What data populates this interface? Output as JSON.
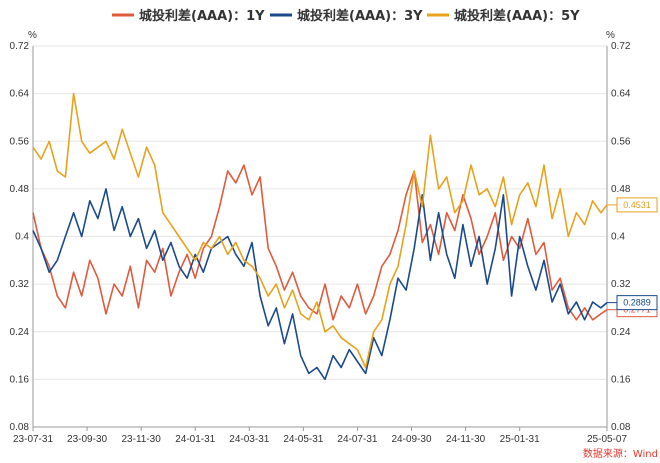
{
  "chart_data": {
    "type": "line",
    "title": "",
    "ylabel_left": "%",
    "ylabel_right": "%",
    "ylim": [
      0.08,
      0.72
    ],
    "yticks": [
      "0.08",
      "0.16",
      "0.24",
      "0.32",
      "0.4",
      "0.48",
      "0.56",
      "0.64",
      "0.72"
    ],
    "xticks": [
      "23-07-31",
      "23-09-30",
      "23-11-30",
      "24-01-31",
      "24-03-31",
      "24-05-31",
      "24-07-31",
      "24-09-30",
      "24-11-30",
      "25-01-31",
      "25-05-07"
    ],
    "xtick_months": [
      0,
      2,
      4,
      6,
      8,
      10,
      12,
      14,
      16,
      18,
      21.23
    ],
    "x_month_range": [
      0,
      21.23
    ],
    "source": "数据来源：Wind",
    "legend_position": "top-center",
    "series": [
      {
        "name": "城投利差(AAA)：1Y",
        "color": "#e05a3c",
        "end_label": "0.2771",
        "months": [
          0,
          0.3,
          0.6,
          0.9,
          1.2,
          1.5,
          1.8,
          2.1,
          2.4,
          2.7,
          3.0,
          3.3,
          3.6,
          3.9,
          4.2,
          4.5,
          4.8,
          5.1,
          5.4,
          5.7,
          6.0,
          6.3,
          6.6,
          6.9,
          7.2,
          7.5,
          7.8,
          8.1,
          8.4,
          8.7,
          9.0,
          9.3,
          9.6,
          9.9,
          10.2,
          10.5,
          10.8,
          11.1,
          11.4,
          11.7,
          12.0,
          12.3,
          12.6,
          12.9,
          13.2,
          13.5,
          13.8,
          14.1,
          14.4,
          14.7,
          15.0,
          15.3,
          15.6,
          15.9,
          16.2,
          16.5,
          16.8,
          17.1,
          17.4,
          17.7,
          18.0,
          18.3,
          18.6,
          18.9,
          19.2,
          19.5,
          19.8,
          20.1,
          20.4,
          20.7,
          21.0,
          21.23
        ],
        "values": [
          0.44,
          0.38,
          0.35,
          0.3,
          0.28,
          0.34,
          0.3,
          0.36,
          0.33,
          0.27,
          0.32,
          0.3,
          0.35,
          0.28,
          0.36,
          0.34,
          0.38,
          0.3,
          0.34,
          0.37,
          0.33,
          0.38,
          0.4,
          0.45,
          0.51,
          0.49,
          0.52,
          0.47,
          0.5,
          0.38,
          0.35,
          0.31,
          0.34,
          0.3,
          0.28,
          0.27,
          0.32,
          0.26,
          0.3,
          0.28,
          0.32,
          0.27,
          0.3,
          0.35,
          0.37,
          0.41,
          0.47,
          0.51,
          0.39,
          0.42,
          0.37,
          0.44,
          0.41,
          0.47,
          0.43,
          0.37,
          0.4,
          0.44,
          0.36,
          0.4,
          0.38,
          0.43,
          0.37,
          0.39,
          0.31,
          0.33,
          0.28,
          0.26,
          0.28,
          0.26,
          0.27,
          0.2771
        ]
      },
      {
        "name": "城投利差(AAA)：3Y",
        "color": "#1a4a8c",
        "end_label": "0.2889",
        "months": [
          0,
          0.3,
          0.6,
          0.9,
          1.2,
          1.5,
          1.8,
          2.1,
          2.4,
          2.7,
          3.0,
          3.3,
          3.6,
          3.9,
          4.2,
          4.5,
          4.8,
          5.1,
          5.4,
          5.7,
          6.0,
          6.3,
          6.6,
          6.9,
          7.2,
          7.5,
          7.8,
          8.1,
          8.4,
          8.7,
          9.0,
          9.3,
          9.6,
          9.9,
          10.2,
          10.5,
          10.8,
          11.1,
          11.4,
          11.7,
          12.0,
          12.3,
          12.6,
          12.9,
          13.2,
          13.5,
          13.8,
          14.1,
          14.4,
          14.7,
          15.0,
          15.3,
          15.6,
          15.9,
          16.2,
          16.5,
          16.8,
          17.1,
          17.4,
          17.7,
          18.0,
          18.3,
          18.6,
          18.9,
          19.2,
          19.5,
          19.8,
          20.1,
          20.4,
          20.7,
          21.0,
          21.23
        ],
        "values": [
          0.41,
          0.38,
          0.34,
          0.36,
          0.4,
          0.44,
          0.4,
          0.46,
          0.43,
          0.48,
          0.41,
          0.45,
          0.4,
          0.43,
          0.38,
          0.41,
          0.36,
          0.39,
          0.35,
          0.33,
          0.37,
          0.34,
          0.38,
          0.39,
          0.4,
          0.37,
          0.35,
          0.39,
          0.3,
          0.25,
          0.28,
          0.22,
          0.27,
          0.2,
          0.17,
          0.18,
          0.16,
          0.2,
          0.18,
          0.21,
          0.19,
          0.17,
          0.23,
          0.2,
          0.26,
          0.33,
          0.31,
          0.38,
          0.47,
          0.36,
          0.44,
          0.37,
          0.33,
          0.42,
          0.35,
          0.4,
          0.32,
          0.38,
          0.47,
          0.3,
          0.4,
          0.35,
          0.31,
          0.36,
          0.29,
          0.32,
          0.27,
          0.29,
          0.26,
          0.29,
          0.28,
          0.2889
        ]
      },
      {
        "name": "城投利差(AAA)：5Y",
        "color": "#e8a21c",
        "end_label": "0.4531",
        "months": [
          0,
          0.3,
          0.6,
          0.9,
          1.2,
          1.5,
          1.8,
          2.1,
          2.4,
          2.7,
          3.0,
          3.3,
          3.6,
          3.9,
          4.2,
          4.5,
          4.8,
          5.1,
          5.4,
          5.7,
          6.0,
          6.3,
          6.6,
          6.9,
          7.2,
          7.5,
          7.8,
          8.1,
          8.4,
          8.7,
          9.0,
          9.3,
          9.6,
          9.9,
          10.2,
          10.5,
          10.8,
          11.1,
          11.4,
          11.7,
          12.0,
          12.3,
          12.6,
          12.9,
          13.2,
          13.5,
          13.8,
          14.1,
          14.4,
          14.7,
          15.0,
          15.3,
          15.6,
          15.9,
          16.2,
          16.5,
          16.8,
          17.1,
          17.4,
          17.7,
          18.0,
          18.3,
          18.6,
          18.9,
          19.2,
          19.5,
          19.8,
          20.1,
          20.4,
          20.7,
          21.0,
          21.23
        ],
        "values": [
          0.55,
          0.53,
          0.56,
          0.51,
          0.5,
          0.64,
          0.56,
          0.54,
          0.55,
          0.56,
          0.53,
          0.58,
          0.54,
          0.5,
          0.55,
          0.52,
          0.44,
          0.42,
          0.4,
          0.38,
          0.36,
          0.39,
          0.38,
          0.4,
          0.37,
          0.39,
          0.36,
          0.35,
          0.33,
          0.3,
          0.32,
          0.28,
          0.31,
          0.27,
          0.26,
          0.29,
          0.24,
          0.25,
          0.23,
          0.22,
          0.21,
          0.18,
          0.24,
          0.26,
          0.32,
          0.35,
          0.42,
          0.51,
          0.45,
          0.57,
          0.48,
          0.5,
          0.44,
          0.46,
          0.52,
          0.47,
          0.48,
          0.45,
          0.5,
          0.42,
          0.47,
          0.49,
          0.45,
          0.52,
          0.43,
          0.48,
          0.4,
          0.44,
          0.42,
          0.46,
          0.44,
          0.4531
        ]
      }
    ]
  }
}
